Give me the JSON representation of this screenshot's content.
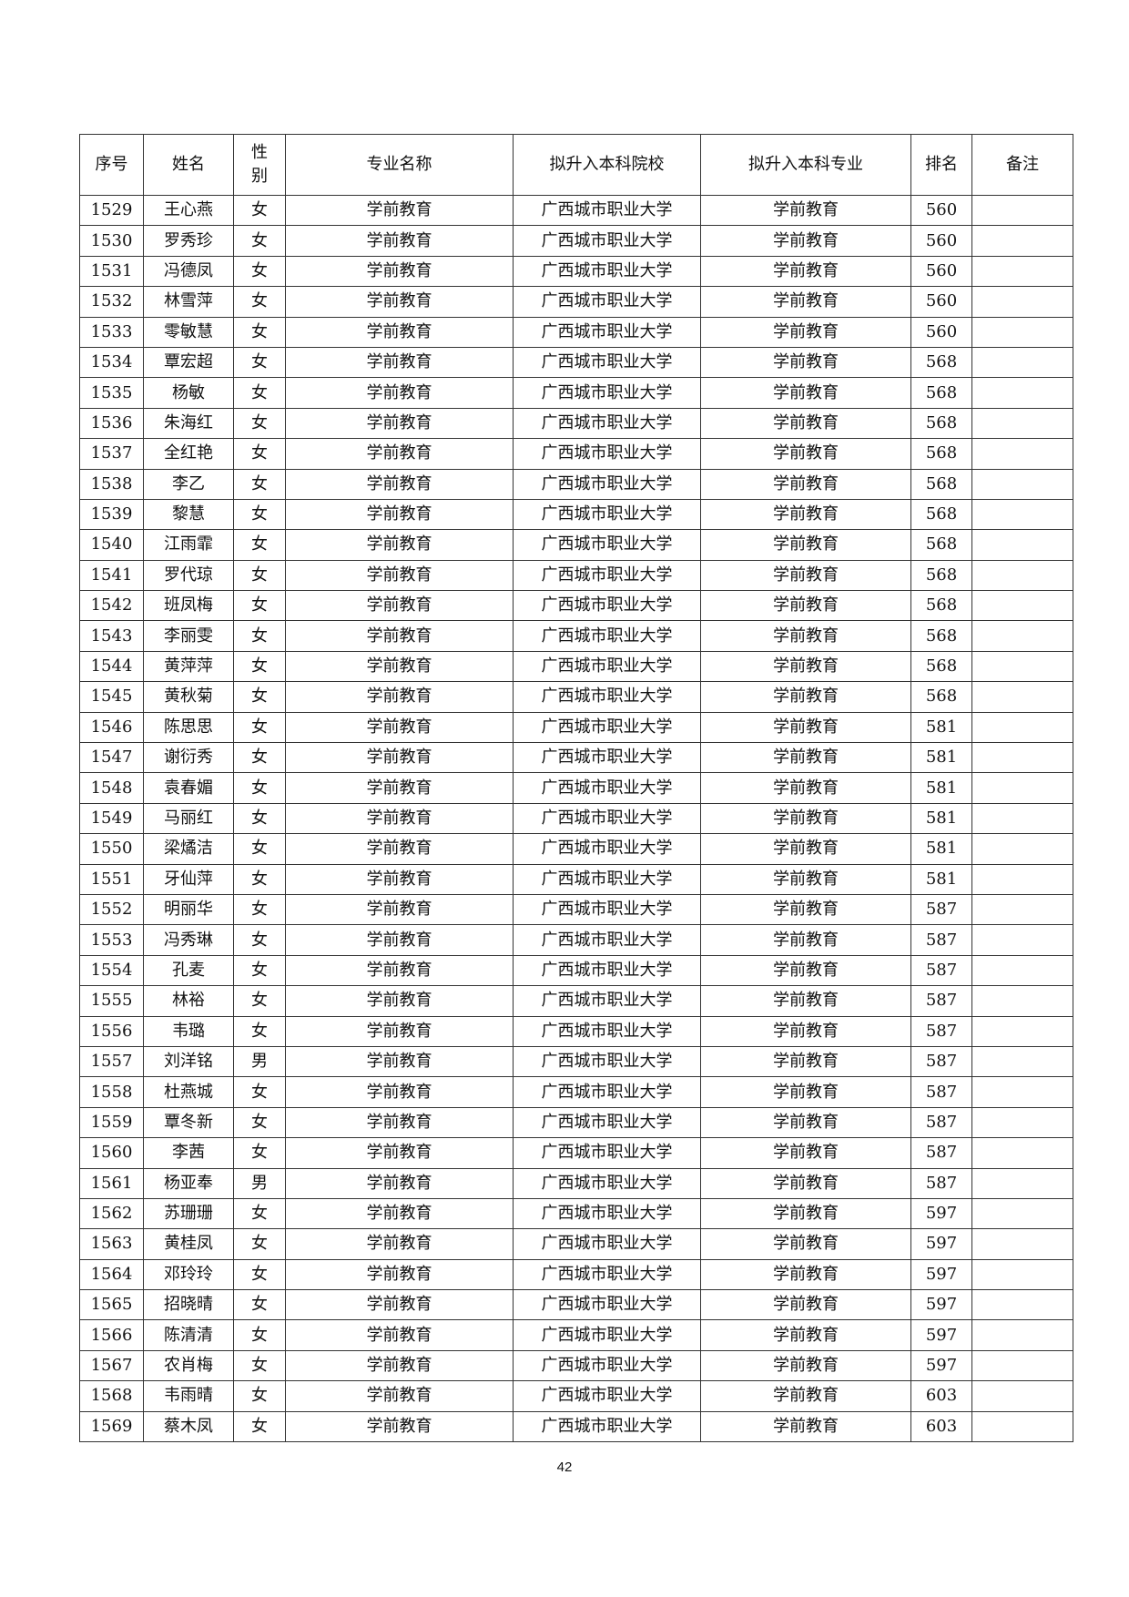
{
  "headers": [
    "序号",
    "姓名",
    "性别",
    "专业名称",
    "拟升入本科院校",
    "拟升入本科专业",
    "排名",
    "备注"
  ],
  "rows": [
    [
      "1529",
      "王心燕",
      "女",
      "学前教育",
      "广西城市职业大学",
      "学前教育",
      "560",
      ""
    ],
    [
      "1530",
      "罗秀珍",
      "女",
      "学前教育",
      "广西城市职业大学",
      "学前教育",
      "560",
      ""
    ],
    [
      "1531",
      "冯德凤",
      "女",
      "学前教育",
      "广西城市职业大学",
      "学前教育",
      "560",
      ""
    ],
    [
      "1532",
      "林雪萍",
      "女",
      "学前教育",
      "广西城市职业大学",
      "学前教育",
      "560",
      ""
    ],
    [
      "1533",
      "零敏慧",
      "女",
      "学前教育",
      "广西城市职业大学",
      "学前教育",
      "560",
      ""
    ],
    [
      "1534",
      "覃宏超",
      "女",
      "学前教育",
      "广西城市职业大学",
      "学前教育",
      "568",
      ""
    ],
    [
      "1535",
      "杨敏",
      "女",
      "学前教育",
      "广西城市职业大学",
      "学前教育",
      "568",
      ""
    ],
    [
      "1536",
      "朱海红",
      "女",
      "学前教育",
      "广西城市职业大学",
      "学前教育",
      "568",
      ""
    ],
    [
      "1537",
      "全红艳",
      "女",
      "学前教育",
      "广西城市职业大学",
      "学前教育",
      "568",
      ""
    ],
    [
      "1538",
      "李乙",
      "女",
      "学前教育",
      "广西城市职业大学",
      "学前教育",
      "568",
      ""
    ],
    [
      "1539",
      "黎慧",
      "女",
      "学前教育",
      "广西城市职业大学",
      "学前教育",
      "568",
      ""
    ],
    [
      "1540",
      "江雨霏",
      "女",
      "学前教育",
      "广西城市职业大学",
      "学前教育",
      "568",
      ""
    ],
    [
      "1541",
      "罗代琼",
      "女",
      "学前教育",
      "广西城市职业大学",
      "学前教育",
      "568",
      ""
    ],
    [
      "1542",
      "班凤梅",
      "女",
      "学前教育",
      "广西城市职业大学",
      "学前教育",
      "568",
      ""
    ],
    [
      "1543",
      "李丽雯",
      "女",
      "学前教育",
      "广西城市职业大学",
      "学前教育",
      "568",
      ""
    ],
    [
      "1544",
      "黄萍萍",
      "女",
      "学前教育",
      "广西城市职业大学",
      "学前教育",
      "568",
      ""
    ],
    [
      "1545",
      "黄秋菊",
      "女",
      "学前教育",
      "广西城市职业大学",
      "学前教育",
      "568",
      ""
    ],
    [
      "1546",
      "陈思思",
      "女",
      "学前教育",
      "广西城市职业大学",
      "学前教育",
      "581",
      ""
    ],
    [
      "1547",
      "谢衍秀",
      "女",
      "学前教育",
      "广西城市职业大学",
      "学前教育",
      "581",
      ""
    ],
    [
      "1548",
      "袁春媚",
      "女",
      "学前教育",
      "广西城市职业大学",
      "学前教育",
      "581",
      ""
    ],
    [
      "1549",
      "马丽红",
      "女",
      "学前教育",
      "广西城市职业大学",
      "学前教育",
      "581",
      ""
    ],
    [
      "1550",
      "梁燏洁",
      "女",
      "学前教育",
      "广西城市职业大学",
      "学前教育",
      "581",
      ""
    ],
    [
      "1551",
      "牙仙萍",
      "女",
      "学前教育",
      "广西城市职业大学",
      "学前教育",
      "581",
      ""
    ],
    [
      "1552",
      "明丽华",
      "女",
      "学前教育",
      "广西城市职业大学",
      "学前教育",
      "587",
      ""
    ],
    [
      "1553",
      "冯秀琳",
      "女",
      "学前教育",
      "广西城市职业大学",
      "学前教育",
      "587",
      ""
    ],
    [
      "1554",
      "孔麦",
      "女",
      "学前教育",
      "广西城市职业大学",
      "学前教育",
      "587",
      ""
    ],
    [
      "1555",
      "林裕",
      "女",
      "学前教育",
      "广西城市职业大学",
      "学前教育",
      "587",
      ""
    ],
    [
      "1556",
      "韦璐",
      "女",
      "学前教育",
      "广西城市职业大学",
      "学前教育",
      "587",
      ""
    ],
    [
      "1557",
      "刘洋铭",
      "男",
      "学前教育",
      "广西城市职业大学",
      "学前教育",
      "587",
      ""
    ],
    [
      "1558",
      "杜燕城",
      "女",
      "学前教育",
      "广西城市职业大学",
      "学前教育",
      "587",
      ""
    ],
    [
      "1559",
      "覃冬新",
      "女",
      "学前教育",
      "广西城市职业大学",
      "学前教育",
      "587",
      ""
    ],
    [
      "1560",
      "李茜",
      "女",
      "学前教育",
      "广西城市职业大学",
      "学前教育",
      "587",
      ""
    ],
    [
      "1561",
      "杨亚奉",
      "男",
      "学前教育",
      "广西城市职业大学",
      "学前教育",
      "587",
      ""
    ],
    [
      "1562",
      "苏珊珊",
      "女",
      "学前教育",
      "广西城市职业大学",
      "学前教育",
      "597",
      ""
    ],
    [
      "1563",
      "黄桂凤",
      "女",
      "学前教育",
      "广西城市职业大学",
      "学前教育",
      "597",
      ""
    ],
    [
      "1564",
      "邓玲玲",
      "女",
      "学前教育",
      "广西城市职业大学",
      "学前教育",
      "597",
      ""
    ],
    [
      "1565",
      "招晓晴",
      "女",
      "学前教育",
      "广西城市职业大学",
      "学前教育",
      "597",
      ""
    ],
    [
      "1566",
      "陈清清",
      "女",
      "学前教育",
      "广西城市职业大学",
      "学前教育",
      "597",
      ""
    ],
    [
      "1567",
      "农肖梅",
      "女",
      "学前教育",
      "广西城市职业大学",
      "学前教育",
      "597",
      ""
    ],
    [
      "1568",
      "韦雨晴",
      "女",
      "学前教育",
      "广西城市职业大学",
      "学前教育",
      "603",
      ""
    ],
    [
      "1569",
      "蔡木凤",
      "女",
      "学前教育",
      "广西城市职业大学",
      "学前教育",
      "603",
      ""
    ]
  ],
  "page_number": "42"
}
